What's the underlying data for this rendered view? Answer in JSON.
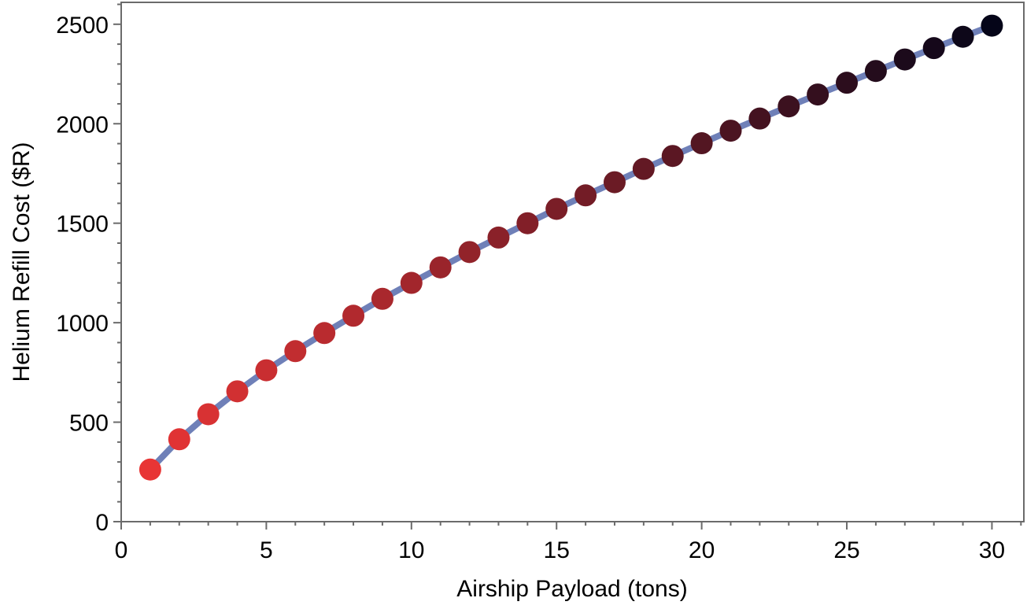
{
  "chart_data": {
    "type": "line",
    "title": "",
    "xlabel": "Airship Payload (tons)",
    "ylabel": "Helium Refill Cost ($R)",
    "xlim": [
      0,
      31.1
    ],
    "ylim": [
      0,
      2610
    ],
    "x_ticks": [
      0,
      5,
      10,
      15,
      20,
      25,
      30
    ],
    "y_ticks": [
      0,
      500,
      1000,
      1500,
      2000,
      2500
    ],
    "x_minor_step": 1,
    "y_minor_step": 100,
    "grid": false,
    "legend": "none",
    "line_color": "#6f80b8",
    "marker_color_start": "#e83535",
    "marker_color_end": "#050518",
    "series": [
      {
        "x": [
          1,
          2,
          3,
          4,
          5,
          6,
          7,
          8,
          9,
          10,
          11,
          12,
          13,
          14,
          15,
          16,
          17,
          18,
          19,
          20,
          21,
          22,
          23,
          24,
          25,
          26,
          27,
          28,
          29,
          30
        ],
        "values": [
          262,
          414,
          540,
          655,
          761,
          857,
          948,
          1035,
          1120,
          1200,
          1278,
          1355,
          1428,
          1500,
          1572,
          1640,
          1706,
          1773,
          1838,
          1902,
          1965,
          2026,
          2087,
          2147,
          2206,
          2265,
          2323,
          2380,
          2437,
          2493
        ]
      }
    ]
  }
}
